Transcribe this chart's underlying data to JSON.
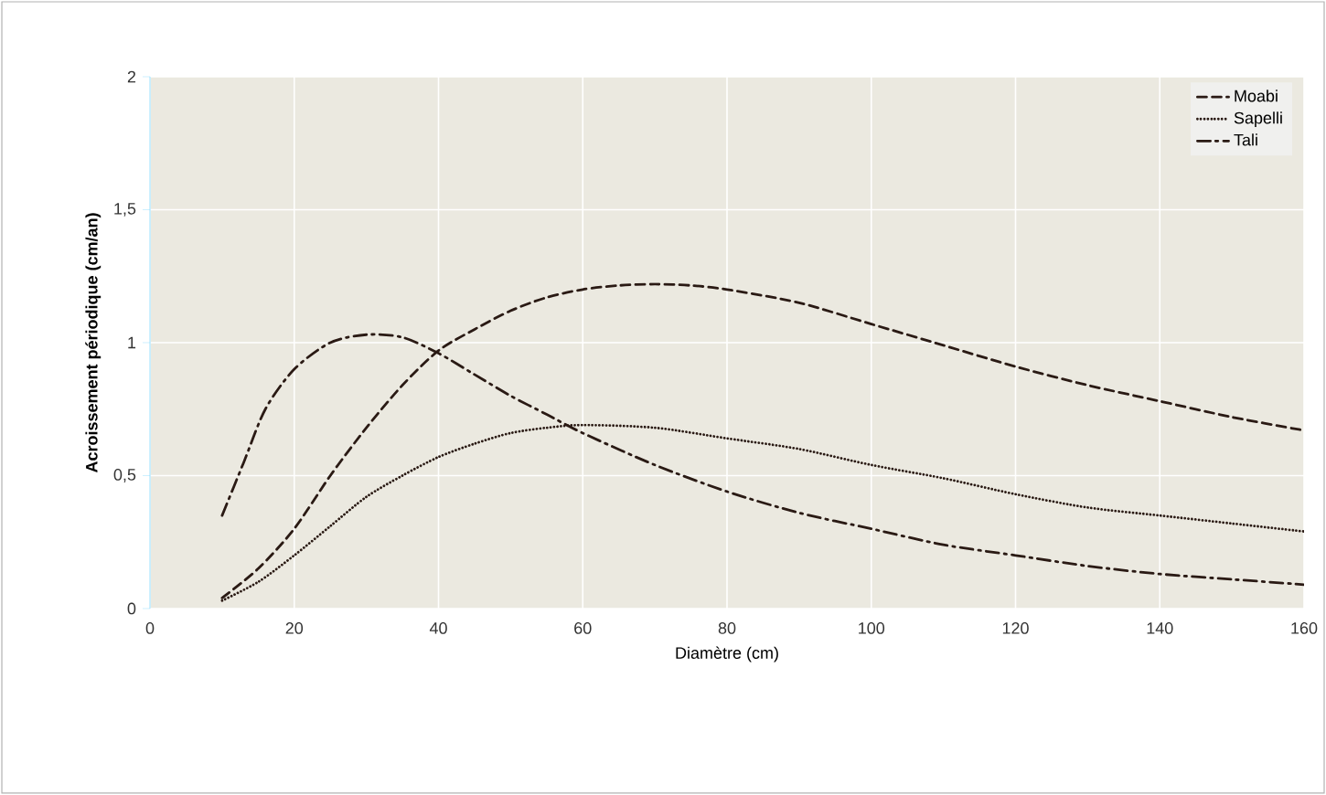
{
  "chart_data": {
    "type": "line",
    "xlabel": "Diamètre (cm)",
    "ylabel": "Acroissement périodique (cm/an)",
    "xlim": [
      0,
      160
    ],
    "xticks": [
      0,
      20,
      40,
      60,
      80,
      100,
      120,
      140,
      160
    ],
    "ylim": [
      0,
      2
    ],
    "yticks": [
      0,
      {
        "value": 0.5,
        "label": "0,5"
      },
      1,
      {
        "value": 1.5,
        "label": "1,5"
      },
      2
    ],
    "grid": true,
    "legend": "top right",
    "marker": "none",
    "series": [
      {
        "name": "Moabi",
        "color": "#2a1a14",
        "line_style": "dashed",
        "x": [
          10,
          15,
          20,
          25,
          30,
          35,
          40,
          45,
          50,
          55,
          60,
          65,
          70,
          75,
          80,
          90,
          100,
          110,
          120,
          130,
          140,
          150,
          160
        ],
        "values": [
          0.04,
          0.15,
          0.3,
          0.5,
          0.68,
          0.84,
          0.97,
          1.05,
          1.12,
          1.17,
          1.2,
          1.215,
          1.22,
          1.215,
          1.2,
          1.15,
          1.07,
          0.99,
          0.91,
          0.84,
          0.78,
          0.72,
          0.67
        ]
      },
      {
        "name": "Sapelli",
        "color": "#2a1a14",
        "line_style": "dotted",
        "x": [
          10,
          15,
          20,
          25,
          30,
          35,
          40,
          45,
          50,
          55,
          60,
          70,
          80,
          90,
          100,
          110,
          120,
          130,
          140,
          150,
          160
        ],
        "values": [
          0.03,
          0.1,
          0.2,
          0.31,
          0.42,
          0.5,
          0.57,
          0.62,
          0.66,
          0.68,
          0.69,
          0.68,
          0.64,
          0.6,
          0.54,
          0.49,
          0.43,
          0.38,
          0.35,
          0.32,
          0.29
        ]
      },
      {
        "name": "Tali",
        "color": "#2a1a14",
        "line_style": "dashdotted",
        "x": [
          10,
          13,
          16,
          20,
          25,
          30,
          35,
          40,
          45,
          50,
          55,
          60,
          70,
          80,
          90,
          100,
          110,
          120,
          130,
          140,
          150,
          160
        ],
        "values": [
          0.35,
          0.55,
          0.75,
          0.9,
          1.0,
          1.03,
          1.02,
          0.96,
          0.88,
          0.8,
          0.73,
          0.66,
          0.54,
          0.44,
          0.36,
          0.3,
          0.24,
          0.2,
          0.16,
          0.13,
          0.11,
          0.09
        ]
      }
    ]
  }
}
